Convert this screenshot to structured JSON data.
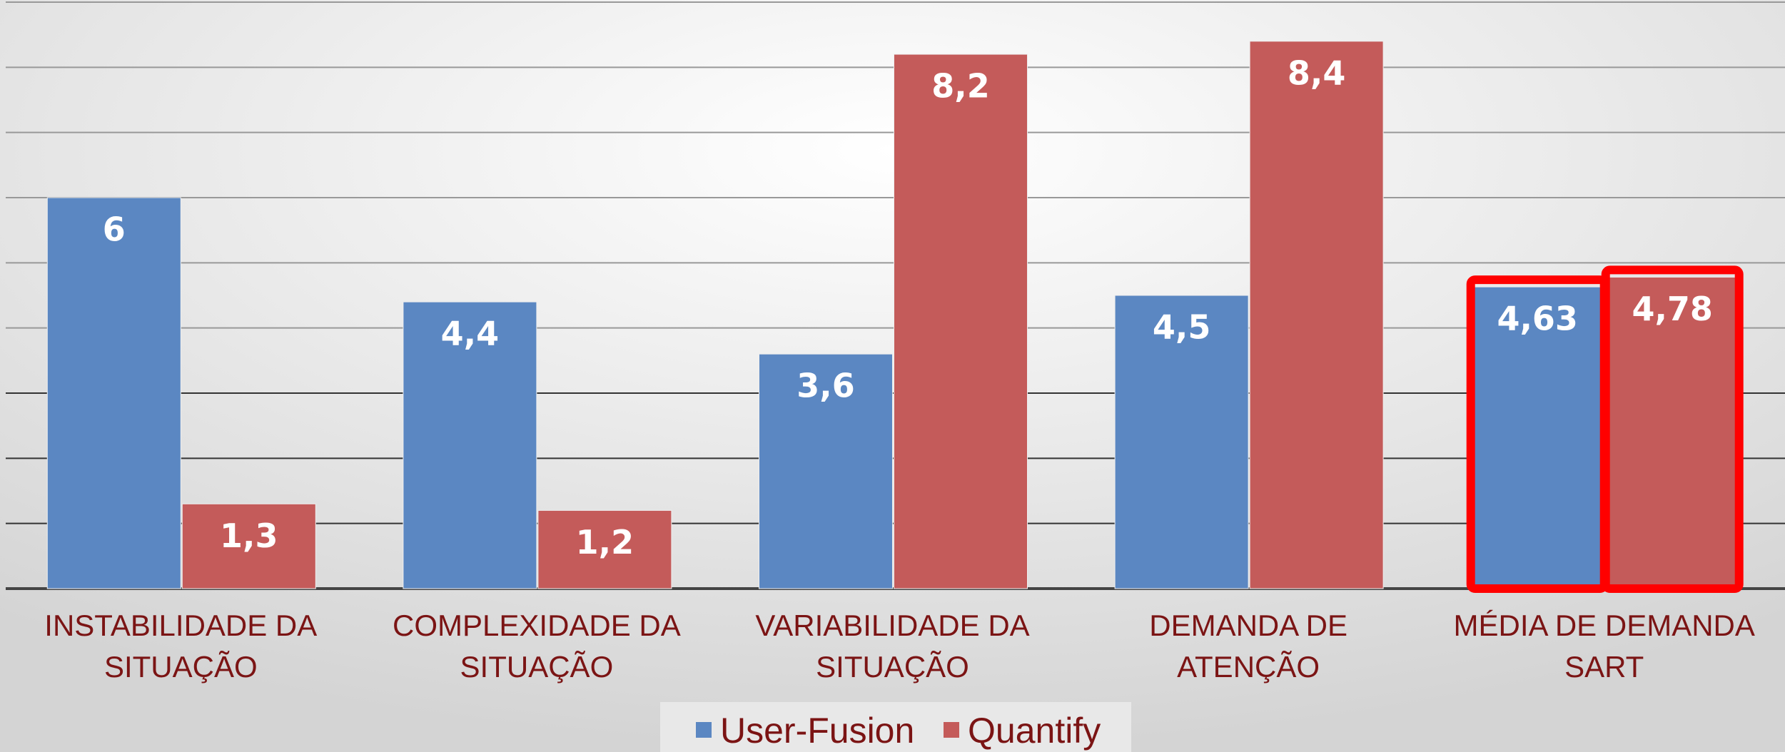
{
  "chart_data": {
    "type": "bar",
    "categories": [
      [
        "INSTABILIDADE DA",
        "SITUAÇÃO"
      ],
      [
        "COMPLEXIDADE DA",
        "SITUAÇÃO"
      ],
      [
        "VARIABILIDADE  DA",
        "SITUAÇÃO"
      ],
      [
        "DEMANDA DE",
        "ATENÇÃO"
      ],
      [
        "MÉDIA DE DEMANDA",
        "SART"
      ]
    ],
    "series": [
      {
        "name": "User-Fusion",
        "color": "#5b87c2",
        "values": [
          6,
          4.4,
          3.6,
          4.5,
          4.63
        ],
        "value_labels": [
          "6",
          "4,4",
          "3,6",
          "4,5",
          "4,63"
        ]
      },
      {
        "name": "Quantify",
        "color": "#c45b5a",
        "values": [
          1.3,
          1.2,
          8.2,
          8.4,
          4.78
        ],
        "value_labels": [
          "1,3",
          "1,2",
          "8,2",
          "8,4",
          "4,78"
        ]
      }
    ],
    "ylim": [
      0,
      9
    ],
    "yticks": [
      0,
      1,
      2,
      3,
      4,
      5,
      6,
      7,
      8,
      9
    ],
    "grid": true,
    "legend": "bottom"
  }
}
